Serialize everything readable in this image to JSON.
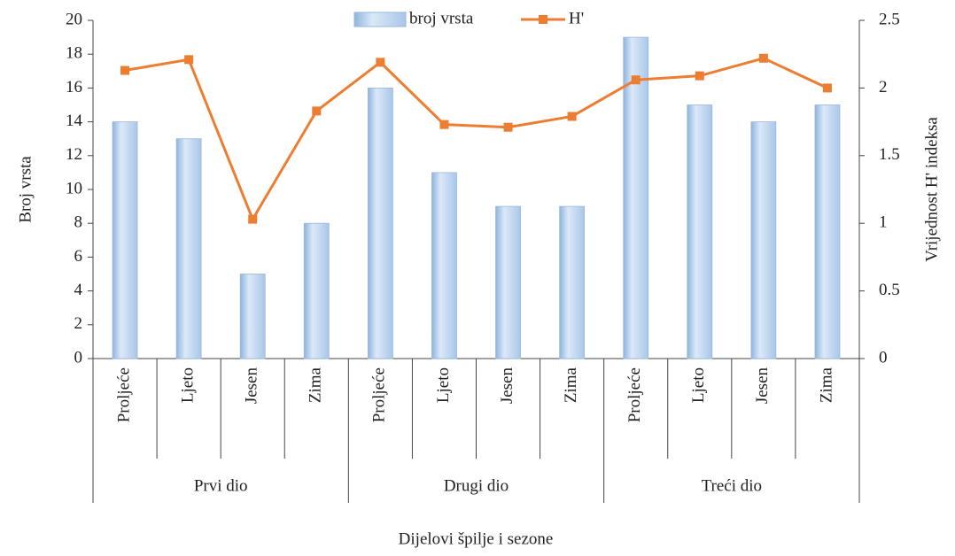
{
  "chart_data": {
    "type": "bar_line",
    "categories": [
      "Proljeće",
      "Ljeto",
      "Jesen",
      "Zima",
      "Proljeće",
      "Ljeto",
      "Jesen",
      "Zima",
      "Proljeće",
      "Ljeto",
      "Jesen",
      "Zima"
    ],
    "groups": [
      "Prvi dio",
      "Drugi dio",
      "Treći dio"
    ],
    "series": [
      {
        "name": "broj vrsta",
        "color": "#bdd7f1",
        "values": [
          14,
          13,
          5,
          8,
          16,
          11,
          9,
          9,
          19,
          15,
          14,
          15
        ]
      },
      {
        "name": "H'",
        "color": "#ed7d31",
        "axis": "y2",
        "values": [
          2.13,
          2.21,
          1.03,
          1.83,
          2.19,
          1.73,
          1.71,
          1.79,
          2.06,
          2.09,
          2.22,
          2.0
        ]
      }
    ],
    "ylabel": "Broj vrsta",
    "y2label": "Vrijednost H' indeksa",
    "xlabel": "Dijelovi špilje i sezone",
    "ylim": [
      0,
      20
    ],
    "yticks": [
      0,
      2,
      4,
      6,
      8,
      10,
      12,
      14,
      16,
      18,
      20
    ],
    "y2lim": [
      0,
      2.5
    ],
    "y2ticks": [
      0,
      0.5,
      1,
      1.5,
      2,
      2.5
    ],
    "legend": "top"
  }
}
